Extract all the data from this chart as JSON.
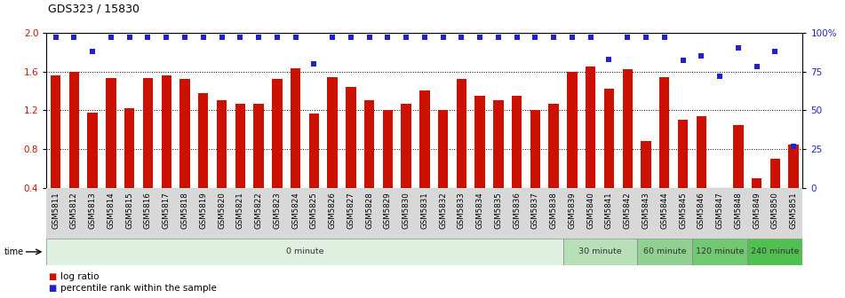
{
  "title": "GDS323 / 15830",
  "samples": [
    "GSM5811",
    "GSM5812",
    "GSM5813",
    "GSM5814",
    "GSM5815",
    "GSM5816",
    "GSM5817",
    "GSM5818",
    "GSM5819",
    "GSM5820",
    "GSM5821",
    "GSM5822",
    "GSM5823",
    "GSM5824",
    "GSM5825",
    "GSM5826",
    "GSM5827",
    "GSM5828",
    "GSM5829",
    "GSM5830",
    "GSM5831",
    "GSM5832",
    "GSM5833",
    "GSM5834",
    "GSM5835",
    "GSM5836",
    "GSM5837",
    "GSM5838",
    "GSM5839",
    "GSM5840",
    "GSM5841",
    "GSM5842",
    "GSM5843",
    "GSM5844",
    "GSM5845",
    "GSM5846",
    "GSM5847",
    "GSM5848",
    "GSM5849",
    "GSM5850",
    "GSM5851"
  ],
  "log_ratio": [
    1.56,
    1.6,
    1.18,
    1.53,
    1.22,
    1.53,
    1.56,
    1.52,
    1.38,
    1.3,
    1.27,
    1.27,
    1.52,
    1.63,
    1.17,
    1.54,
    1.44,
    1.3,
    1.2,
    1.27,
    1.4,
    1.2,
    1.52,
    1.35,
    1.3,
    1.35,
    1.2,
    1.27,
    1.6,
    1.65,
    1.42,
    1.62,
    0.88,
    1.54,
    1.1,
    1.14,
    0.4,
    1.05,
    0.5,
    0.7,
    0.85
  ],
  "percentile": [
    97,
    97,
    88,
    97,
    97,
    97,
    97,
    97,
    97,
    97,
    97,
    97,
    97,
    97,
    80,
    97,
    97,
    97,
    97,
    97,
    97,
    97,
    97,
    97,
    97,
    97,
    97,
    97,
    97,
    97,
    83,
    97,
    97,
    97,
    82,
    85,
    72,
    90,
    78,
    88,
    27
  ],
  "bar_color": "#cc1100",
  "dot_color": "#2222cc",
  "ylim_left": [
    0.4,
    2.0
  ],
  "ylim_right": [
    0,
    100
  ],
  "yticks_left": [
    0.4,
    0.8,
    1.2,
    1.6,
    2.0
  ],
  "yticks_right": [
    0,
    25,
    50,
    75,
    100
  ],
  "ytick_labels_right": [
    "0",
    "25",
    "50",
    "75",
    "100%"
  ],
  "groups": [
    {
      "label": "0 minute",
      "start": 0,
      "end": 28,
      "color": "#e0f0e0"
    },
    {
      "label": "30 minute",
      "start": 28,
      "end": 32,
      "color": "#b8e0b8"
    },
    {
      "label": "60 minute",
      "start": 32,
      "end": 35,
      "color": "#90d090"
    },
    {
      "label": "120 minute",
      "start": 35,
      "end": 38,
      "color": "#70c870"
    },
    {
      "label": "240 minute",
      "start": 38,
      "end": 41,
      "color": "#50c050"
    }
  ],
  "bg_color": "#ffffff",
  "label_bg_color": "#d8d8d8",
  "legend_log_ratio": "log ratio",
  "legend_percentile": "percentile rank within the sample"
}
